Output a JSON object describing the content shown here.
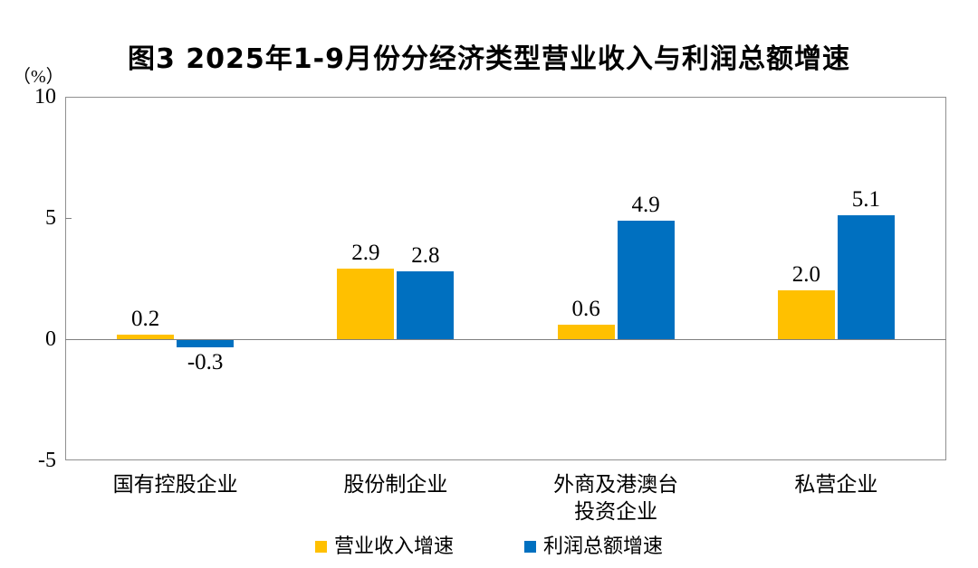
{
  "title": "图3 2025年1-9月份分经济类型营业收入与利润总额增速",
  "y_axis_unit": "（%）",
  "chart_data": {
    "type": "bar",
    "title": "图3 2025年1-9月份分经济类型营业收入与利润总额增速",
    "categories": [
      "国有控股企业",
      "股份制企业",
      "外商及港澳台投资企业",
      "私营企业"
    ],
    "category_lines": [
      [
        "国有控股企业"
      ],
      [
        "股份制企业"
      ],
      [
        "外商及港澳台",
        "投资企业"
      ],
      [
        "私营企业"
      ]
    ],
    "series": [
      {
        "name": "营业收入增速",
        "color": "#FFC000",
        "values": [
          0.2,
          2.9,
          0.6,
          2.0
        ]
      },
      {
        "name": "利润总额增速",
        "color": "#0070C0",
        "values": [
          -0.3,
          2.8,
          4.9,
          5.1
        ]
      }
    ],
    "xlabel": "",
    "ylabel": "（%）",
    "ylim": [
      -5,
      10
    ],
    "yticks": [
      10,
      5,
      0,
      -5
    ],
    "grid": false,
    "legend_position": "bottom",
    "colors": {
      "revenue_series": "#FFC000",
      "profit_series": "#0070C0",
      "axis_frame": "#909090",
      "zero_line": "#7f7f7f",
      "text": "#000000"
    }
  }
}
